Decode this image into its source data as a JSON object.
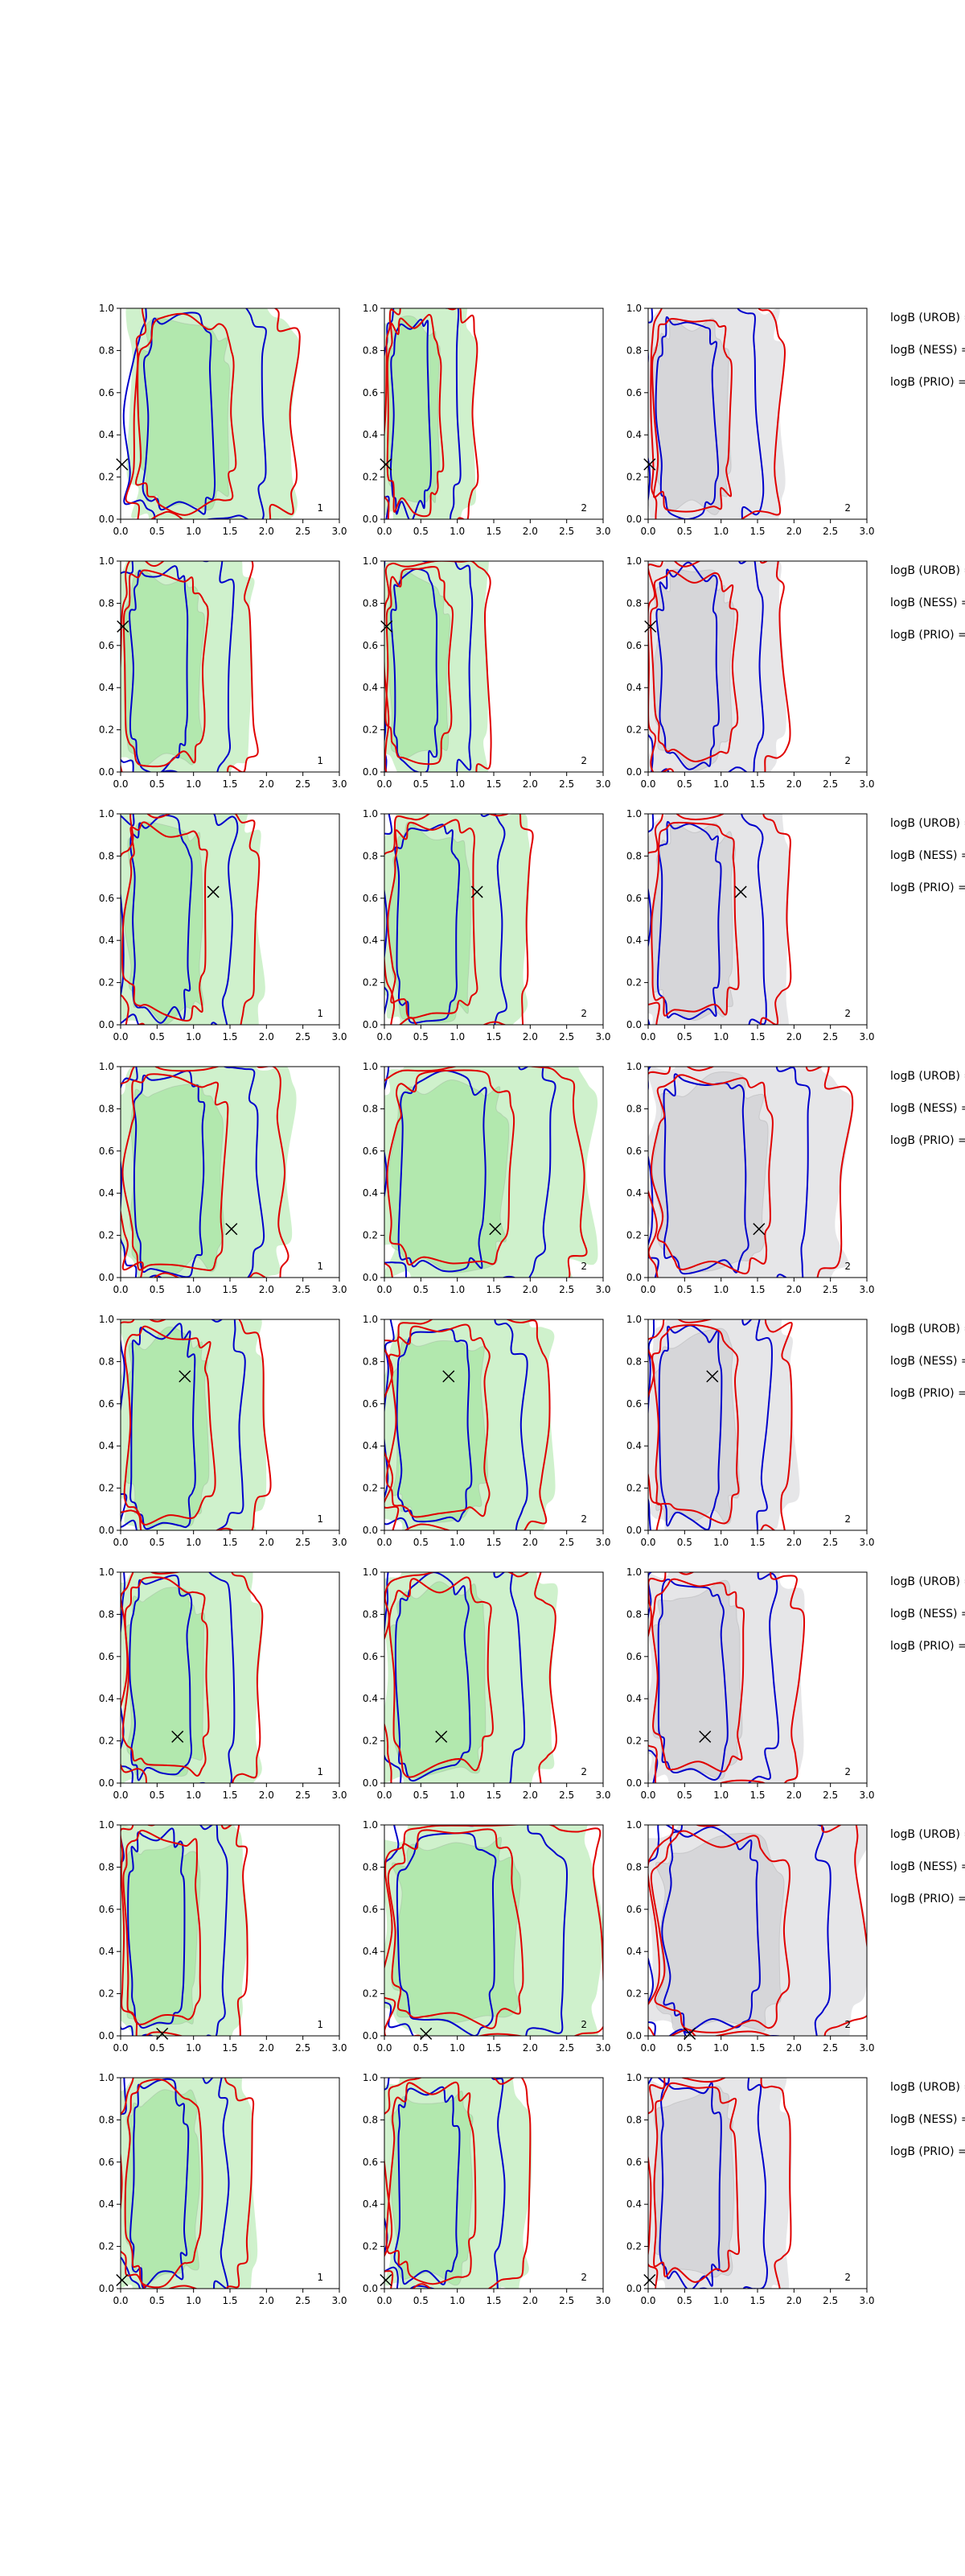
{
  "chart_data": {
    "type": "contour",
    "layout": {
      "rows": 8,
      "cols": 3
    },
    "xlim": [
      0,
      3
    ],
    "ylim": [
      0,
      1
    ],
    "xticks": [
      "0.0",
      "0.5",
      "1.0",
      "1.5",
      "2.0",
      "2.5",
      "3.0"
    ],
    "yticks": [
      "0.0",
      "0.2",
      "0.4",
      "0.6",
      "0.8",
      "1.0"
    ],
    "column_labels": [
      "1",
      "2",
      "2"
    ],
    "row_annotations": [
      "logB (UROB) =",
      "logB (NESS) =",
      "logB (PRIO) ="
    ],
    "colors": {
      "green_fill": "#9fe39a",
      "grey_fill": "#c8c8cc",
      "blue_line": "#0000cc",
      "red_line": "#e00000",
      "marker": "#000000"
    },
    "markers": [
      {
        "row": 1,
        "x": 0.02,
        "y": 0.26
      },
      {
        "row": 2,
        "x": 0.03,
        "y": 0.69
      },
      {
        "row": 3,
        "x": 1.27,
        "y": 0.63
      },
      {
        "row": 4,
        "x": 1.52,
        "y": 0.23
      },
      {
        "row": 5,
        "x": 0.88,
        "y": 0.73
      },
      {
        "row": 6,
        "x": 0.78,
        "y": 0.22
      },
      {
        "row": 7,
        "x": 0.57,
        "y": 0.01
      },
      {
        "row": 8,
        "x": 0.02,
        "y": 0.04
      }
    ],
    "regions": [
      [
        {
          "x": [
            0.15,
            2.4
          ],
          "y": [
            0.0,
            1.0
          ]
        },
        {
          "x": [
            0.0,
            1.25
          ],
          "y": [
            0.0,
            1.0
          ]
        },
        {
          "x": [
            0.0,
            1.85
          ],
          "y": [
            0.0,
            1.0
          ]
        }
      ],
      [
        {
          "x": [
            0.0,
            1.85
          ],
          "y": [
            0.0,
            1.0
          ]
        },
        {
          "x": [
            0.0,
            1.45
          ],
          "y": [
            0.0,
            1.0
          ]
        },
        {
          "x": [
            0.0,
            1.9
          ],
          "y": [
            0.0,
            1.0
          ]
        }
      ],
      [
        {
          "x": [
            0.0,
            1.9
          ],
          "y": [
            0.0,
            1.0
          ]
        },
        {
          "x": [
            0.0,
            2.0
          ],
          "y": [
            0.0,
            1.0
          ]
        },
        {
          "x": [
            0.0,
            1.95
          ],
          "y": [
            0.0,
            1.0
          ]
        }
      ],
      [
        {
          "x": [
            0.0,
            2.3
          ],
          "y": [
            0.0,
            1.0
          ]
        },
        {
          "x": [
            0.0,
            2.8
          ],
          "y": [
            0.0,
            1.0
          ]
        },
        {
          "x": [
            0.0,
            2.7
          ],
          "y": [
            0.0,
            1.0
          ]
        }
      ],
      [
        {
          "x": [
            0.0,
            2.0
          ],
          "y": [
            0.0,
            1.0
          ]
        },
        {
          "x": [
            0.0,
            2.3
          ],
          "y": [
            0.0,
            1.0
          ]
        },
        {
          "x": [
            0.0,
            2.0
          ],
          "y": [
            0.0,
            1.0
          ]
        }
      ],
      [
        {
          "x": [
            0.0,
            1.9
          ],
          "y": [
            0.0,
            1.0
          ]
        },
        {
          "x": [
            0.0,
            2.3
          ],
          "y": [
            0.0,
            1.0
          ]
        },
        {
          "x": [
            0.0,
            2.1
          ],
          "y": [
            0.0,
            1.0
          ]
        }
      ],
      [
        {
          "x": [
            0.0,
            1.75
          ],
          "y": [
            0.0,
            1.0
          ]
        },
        {
          "x": [
            0.0,
            3.0
          ],
          "y": [
            0.0,
            1.0
          ]
        },
        {
          "x": [
            0.0,
            3.0
          ],
          "y": [
            0.0,
            1.0
          ]
        }
      ],
      [
        {
          "x": [
            0.0,
            1.8
          ],
          "y": [
            0.0,
            1.0
          ]
        },
        {
          "x": [
            0.0,
            2.0
          ],
          "y": [
            0.0,
            1.0
          ]
        },
        {
          "x": [
            0.0,
            1.95
          ],
          "y": [
            0.0,
            1.0
          ]
        }
      ]
    ]
  }
}
